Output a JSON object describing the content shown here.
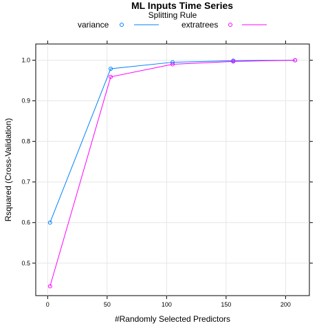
{
  "chart_data": {
    "type": "line",
    "title": "ML Inputs Time Series",
    "legend_title": "Splitting Rule",
    "legend_position": "top",
    "xlabel": "#Randomly Selected Predictors",
    "ylabel": "Rsquared (Cross-Validation)",
    "xlim": [
      -10,
      220
    ],
    "ylim": [
      0.42,
      1.04
    ],
    "xticks": [
      0,
      50,
      100,
      150,
      200
    ],
    "yticks": [
      0.5,
      0.6,
      0.7,
      0.8,
      0.9,
      1.0
    ],
    "ytick_labels": [
      "0.5",
      "0.6",
      "0.7",
      "0.8",
      "0.9",
      "1.0"
    ],
    "grid": true,
    "x": [
      2,
      53,
      105,
      156,
      208
    ],
    "series": [
      {
        "name": "variance",
        "color": "#0080ff",
        "values": [
          0.6,
          0.979,
          0.995,
          0.999,
          1.0
        ]
      },
      {
        "name": "extratrees",
        "color": "#ff00ff",
        "values": [
          0.443,
          0.959,
          0.99,
          0.997,
          1.0
        ]
      }
    ]
  }
}
